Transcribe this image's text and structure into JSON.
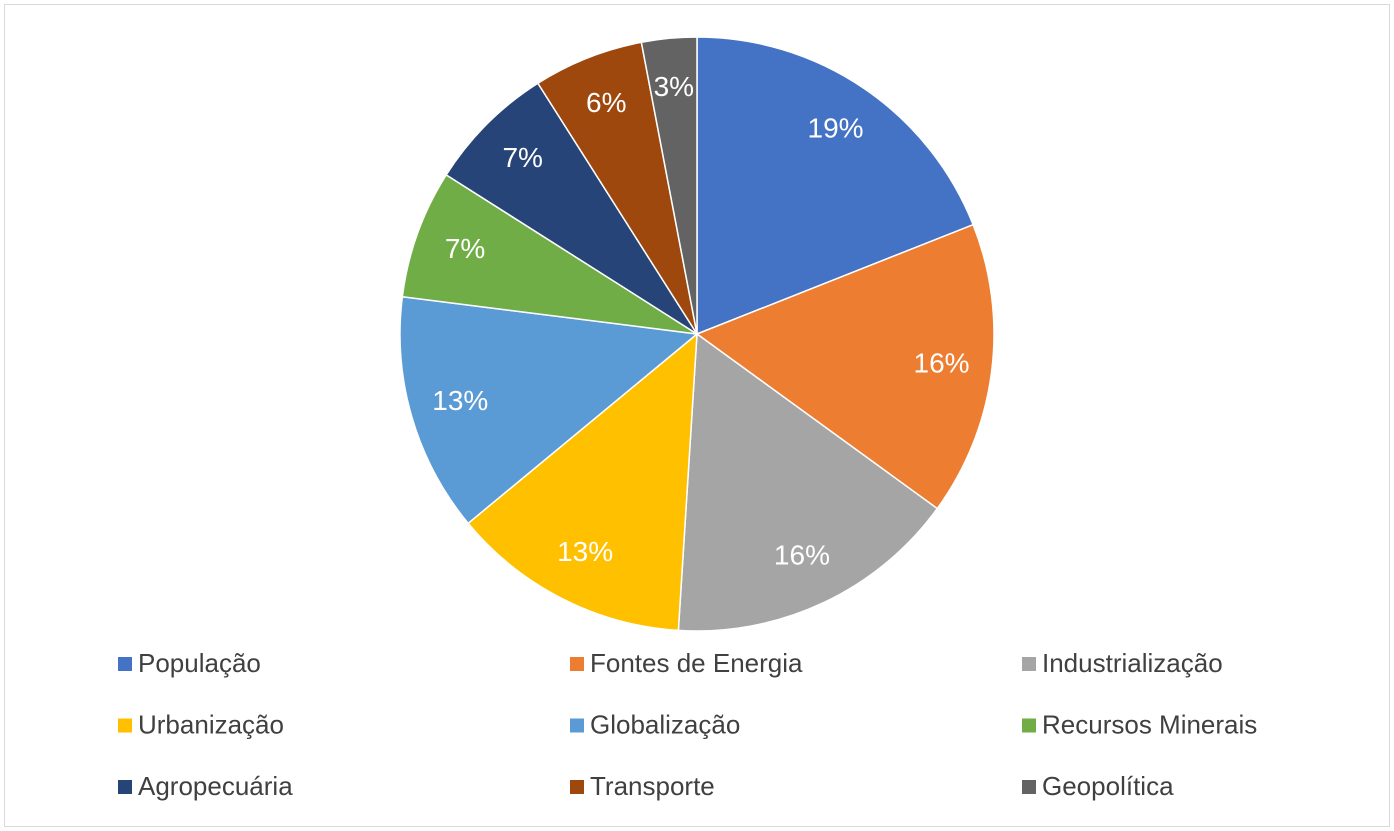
{
  "chart_data": {
    "type": "pie",
    "categories": [
      "População",
      "Fontes de Energia",
      "Industrialização",
      "Urbanização",
      "Globalização",
      "Recursos Minerais",
      "Agropecuária",
      "Transporte",
      "Geopolítica"
    ],
    "values": [
      19,
      16,
      16,
      13,
      13,
      7,
      7,
      6,
      3
    ],
    "value_labels": [
      "19%",
      "16%",
      "16%",
      "13%",
      "13%",
      "7%",
      "7%",
      "6%",
      "3%"
    ],
    "colors": [
      "#4472c4",
      "#ed7d31",
      "#a5a5a5",
      "#ffc000",
      "#5b9bd5",
      "#70ad47",
      "#264478",
      "#9e480e",
      "#636363"
    ],
    "legend": "bottom"
  }
}
